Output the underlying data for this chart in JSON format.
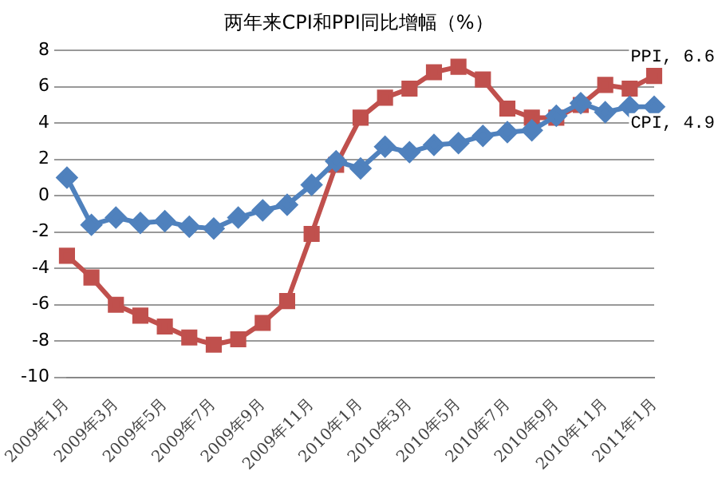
{
  "chart_data": {
    "type": "line",
    "title": "两年来CPI和PPI同比增幅（%）",
    "categories": [
      "2009年1月",
      null,
      "2009年3月",
      null,
      "2009年5月",
      null,
      "2009年7月",
      null,
      "2009年9月",
      null,
      "2009年11月",
      null,
      "2010年1月",
      null,
      "2010年3月",
      null,
      "2010年5月",
      null,
      "2010年7月",
      null,
      "2010年9月",
      null,
      "2010年11月",
      null,
      "2011年1月"
    ],
    "series": [
      {
        "color": "#4f81bd",
        "marker": "diamond",
        "values": [
          1.0,
          -1.6,
          -1.2,
          -1.5,
          -1.4,
          -1.7,
          -1.8,
          -1.2,
          -0.8,
          -0.5,
          0.6,
          1.9,
          1.5,
          2.7,
          2.4,
          2.8,
          2.9,
          3.3,
          3.5,
          3.6,
          4.4,
          5.1,
          4.6,
          4.9,
          4.9
        ],
        "value_labels": [
          null,
          null,
          null,
          null,
          null,
          null,
          null,
          null,
          null,
          null,
          null,
          null,
          null,
          null,
          null,
          null,
          null,
          null,
          null,
          null,
          null,
          null,
          null,
          null,
          "CPI, 4.9"
        ]
      },
      {
        "color": "#c0504d",
        "marker": "square",
        "values": [
          -3.3,
          -4.5,
          -6.0,
          -6.6,
          -7.2,
          -7.8,
          -8.2,
          -7.9,
          -7.0,
          -5.8,
          -2.1,
          1.7,
          4.3,
          5.4,
          5.9,
          6.8,
          7.1,
          6.4,
          4.8,
          4.3,
          4.3,
          5.0,
          6.1,
          5.9,
          6.6
        ],
        "value_labels": [
          null,
          null,
          null,
          null,
          null,
          null,
          null,
          null,
          null,
          null,
          null,
          null,
          null,
          null,
          null,
          null,
          null,
          null,
          null,
          null,
          null,
          null,
          null,
          null,
          "PPI, 6.6"
        ]
      }
    ],
    "ylim": [
      -10,
      8
    ],
    "yticks": [
      -10,
      -8,
      -6,
      -4,
      -2,
      0,
      2,
      4,
      6,
      8
    ],
    "grid": "y",
    "legend": false
  }
}
